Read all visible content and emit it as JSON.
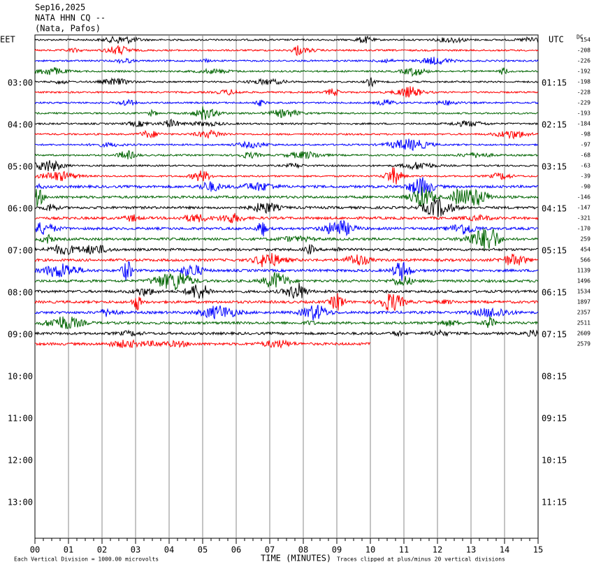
{
  "header": {
    "date": "Sep16,2025",
    "station": "NATA HHN CQ --",
    "location": "(Nata, Pafos)"
  },
  "left_axis": {
    "title": "EET",
    "labels": [
      "03:00",
      "04:00",
      "05:00",
      "06:00",
      "07:00",
      "08:00",
      "09:00",
      "10:00",
      "11:00",
      "12:00",
      "13:00"
    ]
  },
  "right_axis": {
    "title": "UTC",
    "labels": [
      "01:15",
      "02:15",
      "03:15",
      "04:15",
      "05:15",
      "06:15",
      "07:15",
      "08:15",
      "09:15",
      "10:15",
      "11:15"
    ]
  },
  "dc": {
    "title": "DC",
    "offsets": [
      154,
      -208,
      -226,
      -192,
      -198,
      -228,
      -229,
      -193,
      -184,
      -98,
      -97,
      -68,
      -63,
      -39,
      -90,
      -146,
      -147,
      -321,
      -170,
      259,
      454,
      566,
      1139,
      1496,
      1534,
      1897,
      2357,
      2511,
      2609,
      2579
    ]
  },
  "trace_colors": [
    "#000000",
    "#ff0000",
    "#0000ff",
    "#006400"
  ],
  "x_axis": {
    "title": "TIME (MINUTES)",
    "ticks": [
      "00",
      "01",
      "02",
      "03",
      "04",
      "05",
      "06",
      "07",
      "08",
      "09",
      "10",
      "11",
      "12",
      "13",
      "14",
      "15"
    ]
  },
  "footer": {
    "scale": "Each Vertical Division = 1000.00 microvolts",
    "clip": "Traces clipped at plus/minus 20 vertical divisions"
  }
}
